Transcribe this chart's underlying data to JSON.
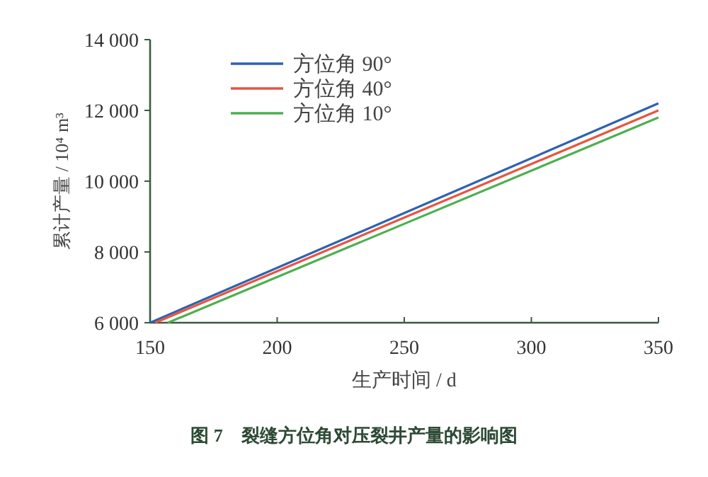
{
  "chart_data": {
    "type": "line",
    "xlabel": "生产时间 / d",
    "ylabel": "累计产量 / 10⁴ m³",
    "annotations": [
      "图 7　裂缝方位角对压裂井产量的影响图"
    ],
    "xlim": [
      150,
      350
    ],
    "xticks": [
      150,
      200,
      250,
      300,
      350
    ],
    "ylim": [
      6000,
      14000
    ],
    "yticks": [
      {
        "value": 6000,
        "label": "6 000"
      },
      {
        "value": 8000,
        "label": "8 000"
      },
      {
        "value": 10000,
        "label": "10 000"
      },
      {
        "value": 12000,
        "label": "12 000"
      },
      {
        "value": 14000,
        "label": "14 000"
      }
    ],
    "grid": false,
    "legend": "top left",
    "marker": "none",
    "line_style": "solid",
    "series": [
      {
        "name": "方位角 90°",
        "color": "#2f62b0",
        "x": [
          150,
          350
        ],
        "values": [
          6000,
          12200
        ]
      },
      {
        "name": "方位角 40°",
        "color": "#e8553e",
        "x": [
          152,
          350
        ],
        "values": [
          6000,
          12000
        ]
      },
      {
        "name": "方位角 10°",
        "color": "#4cb050",
        "x": [
          157,
          350
        ],
        "values": [
          6000,
          11800
        ]
      }
    ]
  }
}
